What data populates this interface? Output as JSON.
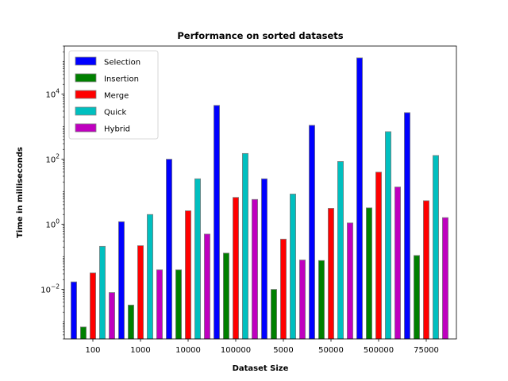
{
  "chart_data": {
    "type": "bar",
    "title": "Performance on sorted datasets",
    "xlabel": "Dataset Size",
    "ylabel": "Time in milliseconds",
    "yscale": "log",
    "ylim": [
      0.0003,
      300000
    ],
    "yticks": [
      {
        "value": 0.01,
        "base": "10",
        "exp": "−2"
      },
      {
        "value": 1,
        "base": "10",
        "exp": "0"
      },
      {
        "value": 100,
        "base": "10",
        "exp": "2"
      },
      {
        "value": 10000,
        "base": "10",
        "exp": "4"
      }
    ],
    "categories": [
      "100",
      "1000",
      "10000",
      "100000",
      "5000",
      "50000",
      "500000",
      "75000"
    ],
    "legend_position": "top-left",
    "grid": false,
    "series": [
      {
        "name": "Selection",
        "color": "#0000ff",
        "values": [
          0.017,
          1.2,
          100,
          4500,
          25,
          1100,
          130000,
          2700
        ]
      },
      {
        "name": "Insertion",
        "color": "#008000",
        "values": [
          0.0007,
          0.0033,
          0.04,
          0.13,
          0.01,
          0.077,
          3.2,
          0.11
        ]
      },
      {
        "name": "Merge",
        "color": "#ff0000",
        "values": [
          0.032,
          0.22,
          2.6,
          6.7,
          0.35,
          3.1,
          40,
          5.3
        ]
      },
      {
        "name": "Quick",
        "color": "#00bfbf",
        "values": [
          0.21,
          2.0,
          25,
          150,
          8.5,
          85,
          700,
          130
        ]
      },
      {
        "name": "Hybrid",
        "color": "#bf00bf",
        "values": [
          0.008,
          0.04,
          0.5,
          5.8,
          0.08,
          1.1,
          14,
          1.6
        ]
      }
    ]
  }
}
